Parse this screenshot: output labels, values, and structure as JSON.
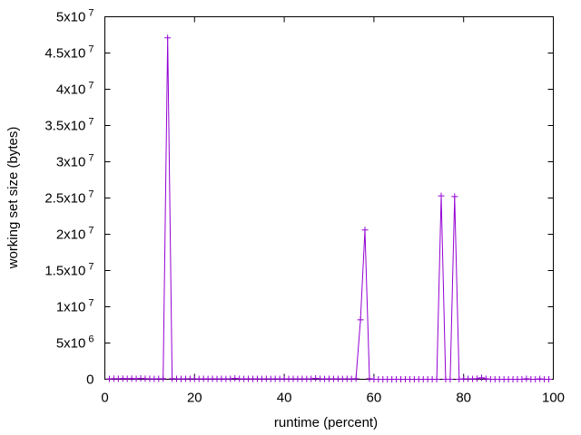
{
  "chart_data": {
    "type": "line",
    "title": "",
    "xlabel": "runtime (percent)",
    "ylabel": "working set size (bytes)",
    "xlim": [
      0,
      100
    ],
    "ylim": [
      0,
      50000000
    ],
    "x_ticks": [
      {
        "value": 0,
        "label": "0"
      },
      {
        "value": 20,
        "label": "20"
      },
      {
        "value": 40,
        "label": "40"
      },
      {
        "value": 60,
        "label": "60"
      },
      {
        "value": 80,
        "label": "80"
      },
      {
        "value": 100,
        "label": "100"
      }
    ],
    "y_ticks": [
      {
        "value": 0,
        "mantissa": "0",
        "exp": ""
      },
      {
        "value": 5000000,
        "mantissa": "5x10",
        "exp": "6"
      },
      {
        "value": 10000000,
        "mantissa": "1x10",
        "exp": "7"
      },
      {
        "value": 15000000,
        "mantissa": "1.5x10",
        "exp": "7"
      },
      {
        "value": 20000000,
        "mantissa": "2x10",
        "exp": "7"
      },
      {
        "value": 25000000,
        "mantissa": "2.5x10",
        "exp": "7"
      },
      {
        "value": 30000000,
        "mantissa": "3x10",
        "exp": "7"
      },
      {
        "value": 35000000,
        "mantissa": "3.5x10",
        "exp": "7"
      },
      {
        "value": 40000000,
        "mantissa": "4x10",
        "exp": "7"
      },
      {
        "value": 45000000,
        "mantissa": "4.5x10",
        "exp": "7"
      },
      {
        "value": 50000000,
        "mantissa": "5x10",
        "exp": "7"
      }
    ],
    "series": [
      {
        "color": "#9400d3",
        "marker": "plus",
        "x": [
          1,
          2,
          3,
          4,
          5,
          6,
          7,
          8,
          9,
          10,
          11,
          12,
          13,
          14,
          15,
          16,
          17,
          18,
          19,
          20,
          21,
          22,
          23,
          24,
          25,
          26,
          27,
          28,
          29,
          30,
          31,
          32,
          33,
          34,
          35,
          36,
          37,
          38,
          39,
          40,
          41,
          42,
          43,
          44,
          45,
          46,
          47,
          48,
          49,
          50,
          51,
          52,
          53,
          54,
          55,
          56,
          57,
          58,
          59,
          60,
          61,
          62,
          63,
          64,
          65,
          66,
          67,
          68,
          69,
          70,
          71,
          72,
          73,
          74,
          75,
          76,
          77,
          78,
          79,
          80,
          81,
          82,
          83,
          84,
          85,
          86,
          87,
          88,
          89,
          90,
          91,
          92,
          93,
          94,
          95,
          96,
          97,
          98,
          99
        ],
        "y": [
          50000,
          80000,
          60000,
          90000,
          70000,
          100000,
          60000,
          120000,
          80000,
          60000,
          50000,
          60000,
          80000,
          47100000,
          80000,
          60000,
          50000,
          60000,
          70000,
          60000,
          50000,
          60000,
          50000,
          60000,
          50000,
          60000,
          50000,
          60000,
          120000,
          60000,
          50000,
          60000,
          50000,
          60000,
          50000,
          60000,
          50000,
          60000,
          50000,
          60000,
          50000,
          60000,
          50000,
          60000,
          50000,
          60000,
          120000,
          60000,
          50000,
          60000,
          50000,
          60000,
          50000,
          60000,
          50000,
          80000,
          8200000,
          20600000,
          80000,
          0,
          0,
          0,
          0,
          0,
          0,
          0,
          0,
          0,
          0,
          0,
          0,
          0,
          0,
          0,
          25300000,
          0,
          0,
          25200000,
          0,
          50000,
          60000,
          50000,
          80000,
          200000,
          60000,
          0,
          0,
          0,
          0,
          0,
          0,
          0,
          0,
          60000,
          0,
          0,
          50000,
          0,
          0
        ]
      }
    ],
    "grid": false,
    "legend": "none"
  }
}
